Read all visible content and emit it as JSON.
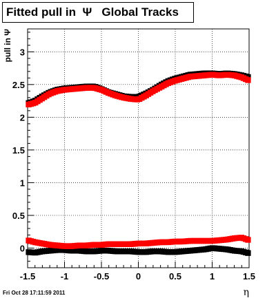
{
  "chart_data": {
    "type": "scatter",
    "title": "Fitted pull in  Ψ   Global Tracks",
    "xlabel": "η",
    "ylabel": "pull in Ψ",
    "xlim": [
      -1.5,
      1.5
    ],
    "ylim": [
      -0.3,
      3.35
    ],
    "grid": true,
    "xticks": [
      "-1.5",
      "-1",
      "-0.5",
      "0",
      "0.5",
      "1",
      "1.5"
    ],
    "yticks": [
      "0",
      "0.5",
      "1",
      "1.5",
      "2",
      "2.5",
      "3"
    ],
    "colors": {
      "series_black": "#000000",
      "series_red": "#ff0000"
    },
    "x": [
      -1.5,
      -1.4,
      -1.3,
      -1.2,
      -1.1,
      -1.0,
      -0.9,
      -0.8,
      -0.7,
      -0.6,
      -0.5,
      -0.4,
      -0.3,
      -0.2,
      -0.1,
      0.0,
      0.1,
      0.2,
      0.3,
      0.4,
      0.5,
      0.6,
      0.7,
      0.8,
      0.9,
      1.0,
      1.1,
      1.2,
      1.3,
      1.4,
      1.5
    ],
    "series": [
      {
        "values": [
          2.21,
          2.25,
          2.32,
          2.38,
          2.42,
          2.44,
          2.45,
          2.46,
          2.47,
          2.47,
          2.43,
          2.38,
          2.35,
          2.32,
          2.31,
          2.31,
          2.36,
          2.42,
          2.49,
          2.55,
          2.59,
          2.62,
          2.65,
          2.66,
          2.67,
          2.67,
          2.66,
          2.67,
          2.66,
          2.64,
          2.61
        ]
      },
      {
        "values": [
          2.19,
          2.22,
          2.29,
          2.36,
          2.4,
          2.42,
          2.43,
          2.44,
          2.45,
          2.45,
          2.42,
          2.37,
          2.33,
          2.3,
          2.28,
          2.27,
          2.33,
          2.4,
          2.46,
          2.52,
          2.56,
          2.59,
          2.62,
          2.63,
          2.64,
          2.65,
          2.64,
          2.65,
          2.64,
          2.61,
          2.56
        ]
      },
      {
        "values": [
          -0.06,
          -0.07,
          -0.05,
          -0.04,
          -0.03,
          -0.03,
          -0.04,
          -0.04,
          -0.05,
          -0.05,
          -0.04,
          -0.04,
          -0.05,
          -0.05,
          -0.05,
          -0.06,
          -0.06,
          -0.05,
          -0.05,
          -0.06,
          -0.06,
          -0.05,
          -0.04,
          -0.03,
          -0.02,
          0.0,
          -0.01,
          -0.02,
          -0.04,
          -0.05,
          -0.08
        ]
      },
      {
        "values": [
          0.12,
          0.09,
          0.07,
          0.05,
          0.04,
          0.03,
          0.03,
          0.04,
          0.04,
          0.05,
          0.05,
          0.06,
          0.06,
          0.06,
          0.06,
          0.07,
          0.07,
          0.08,
          0.09,
          0.09,
          0.1,
          0.1,
          0.11,
          0.11,
          0.11,
          0.11,
          0.12,
          0.13,
          0.15,
          0.16,
          0.12
        ]
      }
    ]
  },
  "footer_text": "Fri Oct 28 17:11:59 2011"
}
